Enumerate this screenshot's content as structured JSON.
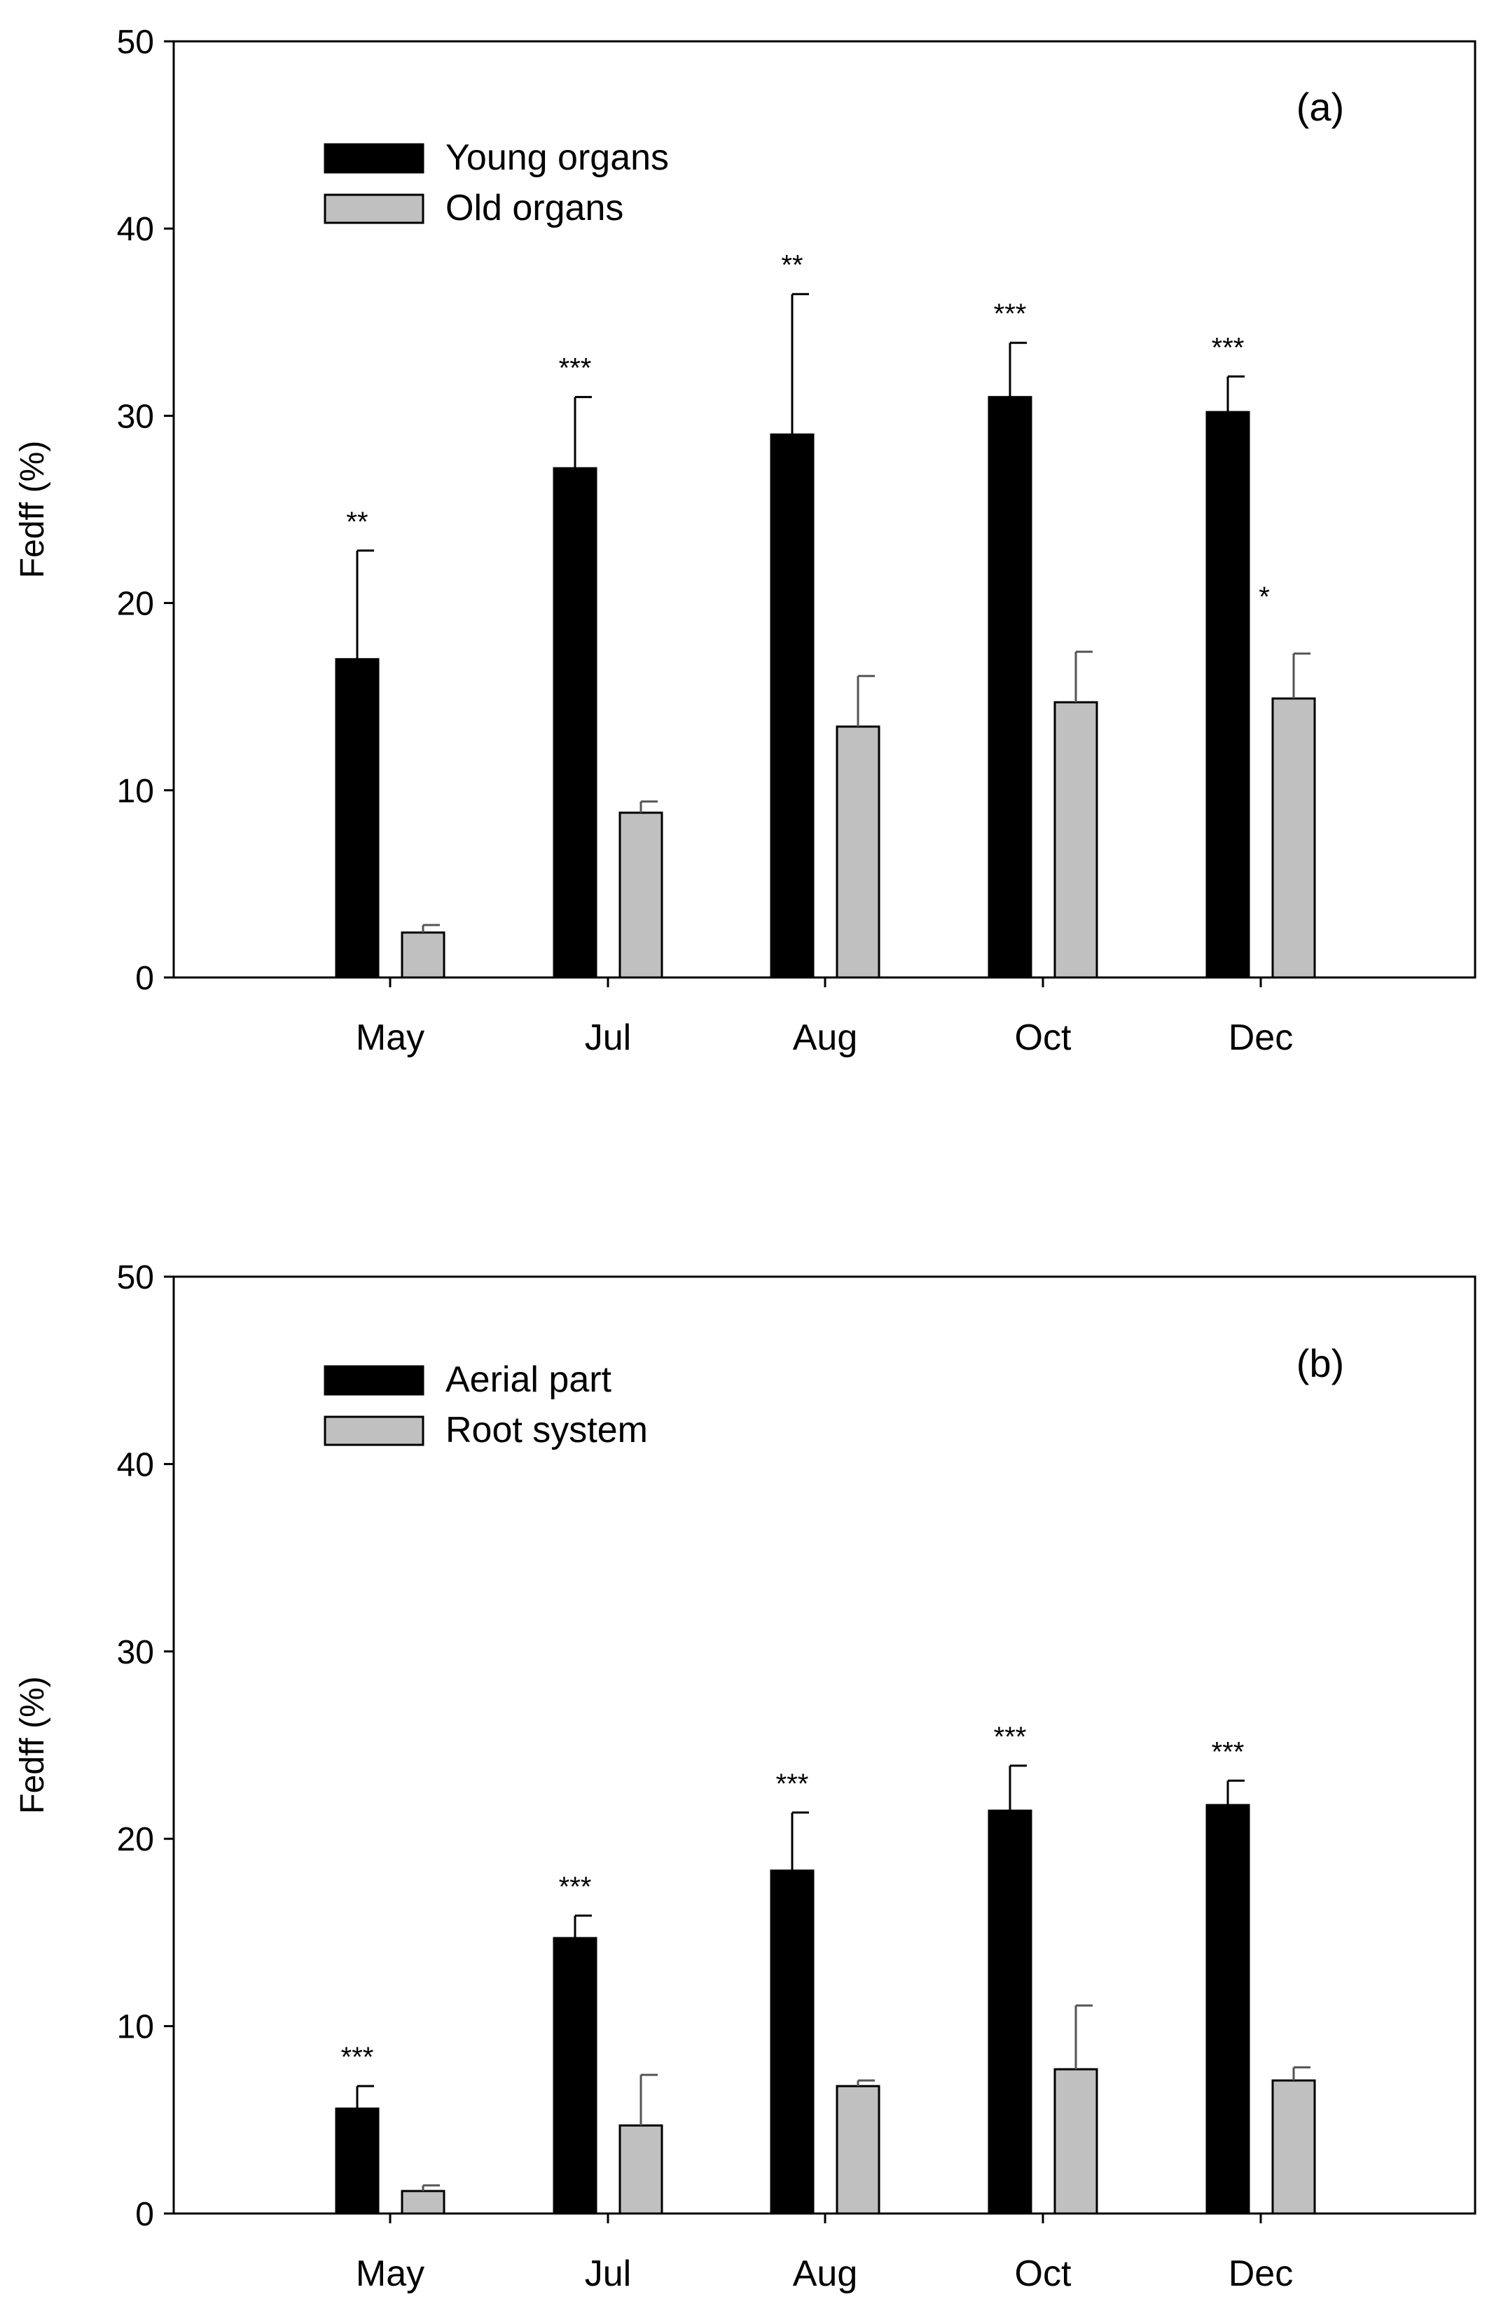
{
  "chart_data": [
    {
      "type": "bar",
      "panel_label": "(a)",
      "ylabel": "Fedff (%)",
      "xlabel": "",
      "ylim": [
        0,
        50
      ],
      "yticks": [
        "0",
        "10",
        "20",
        "30",
        "40",
        "50"
      ],
      "categories": [
        "May",
        "Jul",
        "Aug",
        "Oct",
        "Dec"
      ],
      "series": [
        {
          "name": "Young organs",
          "color": "#000000",
          "values": [
            17.0,
            27.2,
            29.0,
            31.0,
            30.2
          ],
          "errors": [
            5.8,
            3.8,
            7.5,
            2.9,
            1.9
          ]
        },
        {
          "name": "Old organs",
          "color": "#c0c0c0",
          "values": [
            2.4,
            8.8,
            13.4,
            14.7,
            14.9
          ],
          "errors": [
            0.4,
            0.6,
            2.7,
            2.7,
            2.4
          ]
        }
      ],
      "significance": [
        "**",
        "***",
        "**",
        "***",
        "***"
      ],
      "extra_annotation": {
        "text": "*",
        "category": "Dec",
        "y": 20.5
      },
      "legend_position": "top-left"
    },
    {
      "type": "bar",
      "panel_label": "(b)",
      "ylabel": "Fedff (%)",
      "xlabel": "",
      "ylim": [
        0,
        50
      ],
      "yticks": [
        "0",
        "10",
        "20",
        "30",
        "40",
        "50"
      ],
      "categories": [
        "May",
        "Jul",
        "Aug",
        "Oct",
        "Dec"
      ],
      "series": [
        {
          "name": "Aerial part",
          "color": "#000000",
          "values": [
            5.6,
            14.7,
            18.3,
            21.5,
            21.8
          ],
          "errors": [
            1.2,
            1.2,
            3.1,
            2.4,
            1.3
          ]
        },
        {
          "name": "Root system",
          "color": "#c0c0c0",
          "values": [
            1.2,
            4.7,
            6.8,
            7.7,
            7.1
          ],
          "errors": [
            0.3,
            2.7,
            0.3,
            3.4,
            0.7
          ]
        }
      ],
      "significance": [
        "***",
        "***",
        "***",
        "***",
        "***"
      ],
      "legend_position": "top-left"
    }
  ]
}
